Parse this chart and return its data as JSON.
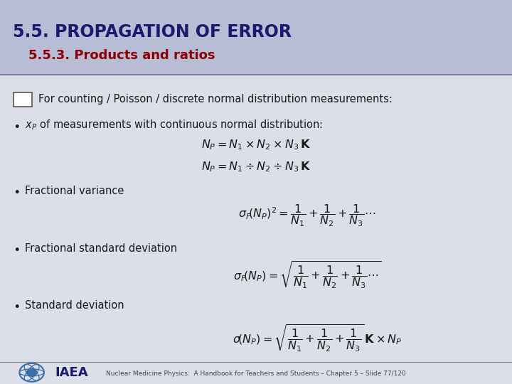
{
  "title_main": "5.5. PROPAGATION OF ERROR",
  "title_sub": "5.5.3. Products and ratios",
  "title_main_color": "#1a1a6e",
  "title_sub_color": "#8b0000",
  "bg_header_color": "#b8bcd4",
  "bg_body_color": "#dcdee8",
  "text_color": "#1a1a1a",
  "footer_text": "Nuclear Medicine Physics:  A Handbook for Teachers and Students – Chapter 5 – Slide 77/120",
  "iaea_text": "IAEA",
  "line1": "For counting / Poisson / discrete normal distribution measurements:",
  "bullet_fv": "Fractional variance",
  "bullet_fsd": "Fractional standard deviation",
  "bullet_sd": "Standard deviation"
}
